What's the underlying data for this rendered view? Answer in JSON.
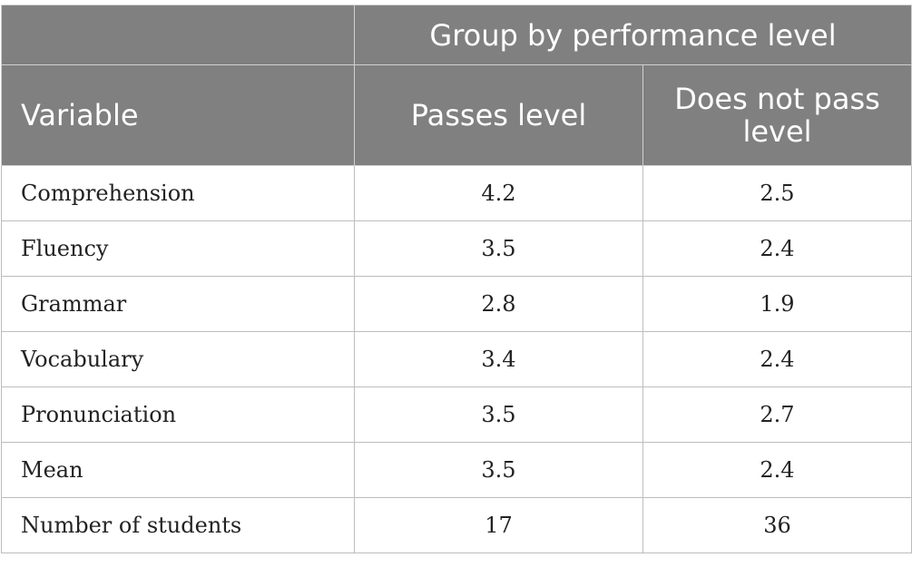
{
  "table": {
    "group_header": "Group by performance level",
    "variable_header": "Variable",
    "columns": [
      "Passes level",
      "Does not pass level"
    ],
    "rows": [
      {
        "label": "Comprehension",
        "values": [
          "4.2",
          "2.5"
        ]
      },
      {
        "label": "Fluency",
        "values": [
          "3.5",
          "2.4"
        ]
      },
      {
        "label": "Grammar",
        "values": [
          "2.8",
          "1.9"
        ]
      },
      {
        "label": "Vocabulary",
        "values": [
          "3.4",
          "2.4"
        ]
      },
      {
        "label": "Pronunciation",
        "values": [
          "3.5",
          "2.7"
        ]
      },
      {
        "label": "Mean",
        "values": [
          "3.5",
          "2.4"
        ]
      },
      {
        "label": "Number of students",
        "values": [
          "17",
          "36"
        ]
      }
    ],
    "colors": {
      "header_bg": "#808080",
      "header_text": "#ffffff",
      "body_text": "#222222",
      "grid": "#bdbdbd"
    }
  }
}
